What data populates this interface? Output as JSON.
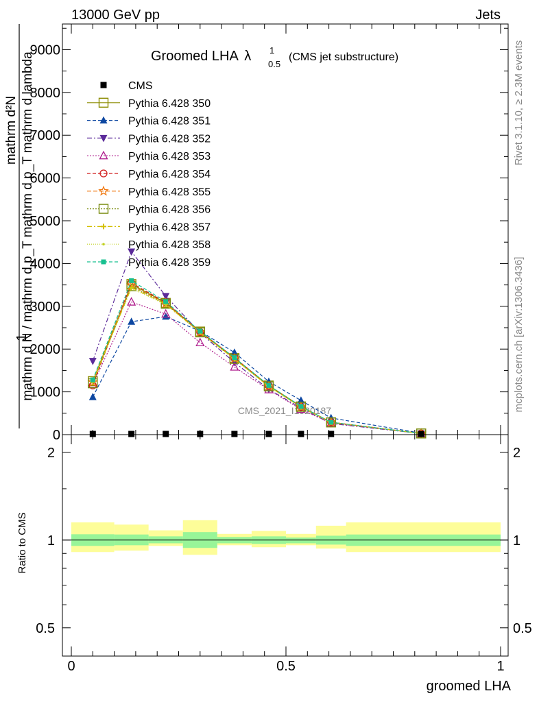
{
  "header": {
    "left": "13000 GeV pp",
    "right": "Jets"
  },
  "side_labels": {
    "rivet": "Rivet 3.1.10, ≥ 2.3M events",
    "mcplots": "mcplots.cern.ch [arXiv:1306.3436]"
  },
  "chart_data": [
    {
      "type": "line",
      "title_main": "Groomed LHA",
      "title_lambda": "λ",
      "title_sup": "1",
      "title_sub": "0.5",
      "title_note": "(CMS jet substructure)",
      "watermark": "CMS_2021_I1920187",
      "ylabel_numerator": "1",
      "ylabel_denominator": "mathrm d N / mathrm d p_T mathrm d p_T mathrm d lambda",
      "ylabel_top": "mathrm d²N",
      "ylim": [
        0,
        9600
      ],
      "yticks": [
        {
          "v": 0,
          "label": "0"
        },
        {
          "v": 1000,
          "label": "1000"
        },
        {
          "v": 2000,
          "label": "2000"
        },
        {
          "v": 3000,
          "label": "3000"
        },
        {
          "v": 4000,
          "label": "4000"
        },
        {
          "v": 5000,
          "label": "5000"
        },
        {
          "v": 6000,
          "label": "6000"
        },
        {
          "v": 7000,
          "label": "7000"
        },
        {
          "v": 8000,
          "label": "8000"
        },
        {
          "v": 9000,
          "label": "9000"
        }
      ],
      "xlim": [
        0,
        1
      ],
      "x": [
        0.05,
        0.14,
        0.22,
        0.3,
        0.38,
        0.46,
        0.535,
        0.605,
        0.815
      ],
      "cms": {
        "name": "CMS",
        "values": [
          7,
          7,
          7,
          7,
          7,
          7,
          7,
          7,
          7
        ]
      },
      "series": [
        {
          "name": "Pythia 6.428 350",
          "color": "#8b8b00",
          "dash": "",
          "marker": "square-open",
          "values": [
            1250,
            3520,
            3080,
            2410,
            1790,
            1150,
            660,
            290,
            28
          ]
        },
        {
          "name": "Pythia 6.428 351",
          "color": "#0d47a1",
          "dash": "5,3",
          "marker": "triangle-up-filled",
          "values": [
            880,
            2640,
            2760,
            2420,
            1920,
            1240,
            800,
            390,
            35
          ]
        },
        {
          "name": "Pythia 6.428 352",
          "color": "#5b2a9a",
          "dash": "7,3,2,3",
          "marker": "triangle-down-filled",
          "values": [
            1720,
            4280,
            3240,
            2380,
            1690,
            1060,
            620,
            260,
            26
          ]
        },
        {
          "name": "Pythia 6.428 353",
          "color": "#b0208f",
          "dash": "2,2",
          "marker": "triangle-up-open",
          "values": [
            1180,
            3100,
            2820,
            2150,
            1580,
            1050,
            590,
            270,
            25
          ]
        },
        {
          "name": "Pythia 6.428 354",
          "color": "#d01a1a",
          "dash": "5,3",
          "marker": "circle-open",
          "values": [
            1150,
            3550,
            3090,
            2400,
            1800,
            1140,
            650,
            290,
            27
          ]
        },
        {
          "name": "Pythia 6.428 355",
          "color": "#f07810",
          "dash": "6,3",
          "marker": "star-open",
          "values": [
            1230,
            3490,
            3070,
            2400,
            1780,
            1130,
            650,
            290,
            27
          ]
        },
        {
          "name": "Pythia 6.428 356",
          "color": "#7a8c10",
          "dash": "2,2",
          "marker": "square-open",
          "values": [
            1200,
            3470,
            3060,
            2390,
            1770,
            1130,
            650,
            285,
            27
          ]
        },
        {
          "name": "Pythia 6.428 357",
          "color": "#d4c000",
          "dash": "7,3,2,3",
          "marker": "cross-filled",
          "values": [
            1220,
            3440,
            3050,
            2390,
            1770,
            1130,
            645,
            285,
            27
          ]
        },
        {
          "name": "Pythia 6.428 358",
          "color": "#c0d020",
          "dash": "1,2",
          "marker": "dot",
          "values": [
            1240,
            3420,
            3040,
            2380,
            1760,
            1120,
            640,
            280,
            27
          ]
        },
        {
          "name": "Pythia 6.428 359",
          "color": "#18c090",
          "dash": "5,3",
          "marker": "square-filled",
          "values": [
            1280,
            3600,
            3110,
            2420,
            1800,
            1150,
            660,
            290,
            28
          ]
        }
      ]
    },
    {
      "type": "line",
      "ylabel": "Ratio to CMS",
      "xlabel": "groomed LHA",
      "ylim": [
        0.4,
        2.3
      ],
      "yscale": "log",
      "yticks": [
        {
          "v": 0.5,
          "label": "0.5"
        },
        {
          "v": 1,
          "label": "1"
        },
        {
          "v": 2,
          "label": "2"
        }
      ],
      "xlim": [
        0,
        1
      ],
      "xticks": [
        {
          "v": 0,
          "label": "0"
        },
        {
          "v": 0.5,
          "label": "0.5"
        },
        {
          "v": 1,
          "label": "1"
        }
      ],
      "bins": [
        {
          "lo": 0.0,
          "hi": 0.1,
          "inner": [
            0.955,
            1.047
          ],
          "outer": [
            0.91,
            1.15
          ]
        },
        {
          "lo": 0.1,
          "hi": 0.18,
          "inner": [
            0.96,
            1.045
          ],
          "outer": [
            0.92,
            1.13
          ]
        },
        {
          "lo": 0.18,
          "hi": 0.26,
          "inner": [
            0.975,
            1.03
          ],
          "outer": [
            0.955,
            1.08
          ]
        },
        {
          "lo": 0.26,
          "hi": 0.34,
          "inner": [
            0.94,
            1.065
          ],
          "outer": [
            0.89,
            1.17
          ]
        },
        {
          "lo": 0.34,
          "hi": 0.42,
          "inner": [
            0.975,
            1.025
          ],
          "outer": [
            0.96,
            1.05
          ]
        },
        {
          "lo": 0.42,
          "hi": 0.5,
          "inner": [
            0.97,
            1.03
          ],
          "outer": [
            0.945,
            1.075
          ]
        },
        {
          "lo": 0.5,
          "hi": 0.57,
          "inner": [
            0.975,
            1.02
          ],
          "outer": [
            0.96,
            1.05
          ]
        },
        {
          "lo": 0.57,
          "hi": 0.64,
          "inner": [
            0.965,
            1.035
          ],
          "outer": [
            0.935,
            1.12
          ]
        },
        {
          "lo": 0.64,
          "hi": 1.0,
          "inner": [
            0.955,
            1.045
          ],
          "outer": [
            0.91,
            1.15
          ]
        }
      ]
    }
  ]
}
